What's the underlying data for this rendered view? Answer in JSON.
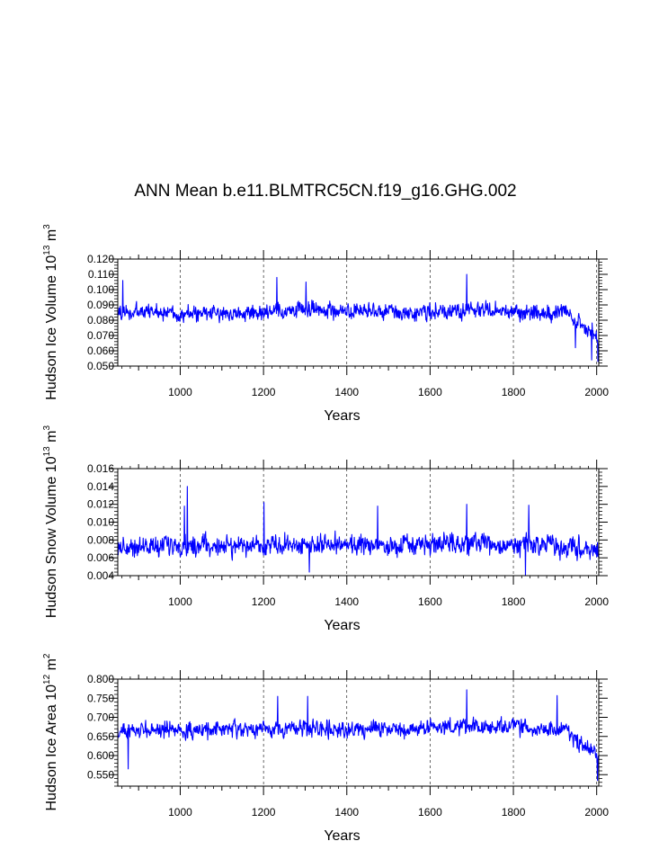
{
  "figure": {
    "title": "ANN Mean b.e11.BLMTRC5CN.f19_g16.GHG.002"
  },
  "chart_data": [
    {
      "type": "line",
      "title": "",
      "xlabel": "Years",
      "ylabel": "Hudson Ice Volume 10",
      "ylabel_exp": "13",
      "ylabel_unit": " m",
      "ylabel_unit_exp": "3",
      "xlim": [
        850,
        2005
      ],
      "ylim": [
        0.05,
        0.12
      ],
      "xticks": [
        1000,
        1200,
        1400,
        1600,
        1800,
        2000
      ],
      "xtick_labels": [
        "1000",
        "1200",
        "1400",
        "1600",
        "1800",
        "2000"
      ],
      "yticks": [
        0.05,
        0.06,
        0.07,
        0.08,
        0.09,
        0.1,
        0.11,
        0.12
      ],
      "ytick_labels": [
        "0.050",
        "0.060",
        "0.070",
        "0.080",
        "0.090",
        "0.100",
        "0.110",
        "0.120"
      ],
      "color": "#0000ff",
      "series": [
        {
          "name": "Hudson Ice Volume",
          "x_start": 850,
          "x_end": 2005,
          "anchors_x": [
            850,
            900,
            950,
            1000,
            1050,
            1100,
            1150,
            1200,
            1250,
            1300,
            1350,
            1400,
            1450,
            1500,
            1550,
            1600,
            1650,
            1700,
            1750,
            1800,
            1850,
            1900,
            1930,
            1950,
            1970,
            1990,
            2005
          ],
          "anchors_y": [
            0.085,
            0.085,
            0.086,
            0.084,
            0.084,
            0.085,
            0.084,
            0.085,
            0.085,
            0.088,
            0.087,
            0.085,
            0.085,
            0.086,
            0.085,
            0.086,
            0.085,
            0.087,
            0.086,
            0.086,
            0.085,
            0.085,
            0.084,
            0.079,
            0.075,
            0.073,
            0.066
          ],
          "noise_amp": 0.0075,
          "peaks": [
            [
              862,
              0.106
            ],
            [
              1232,
              0.108
            ],
            [
              1302,
              0.105
            ],
            [
              1688,
              0.11
            ],
            [
              1949,
              0.062
            ],
            [
              1988,
              0.054
            ],
            [
              2003,
              0.053
            ]
          ]
        }
      ]
    },
    {
      "type": "line",
      "title": "",
      "xlabel": "Years",
      "ylabel": "Hudson Snow Volume 10",
      "ylabel_exp": "13",
      "ylabel_unit": " m",
      "ylabel_unit_exp": "3",
      "xlim": [
        850,
        2005
      ],
      "ylim": [
        0.004,
        0.016
      ],
      "xticks": [
        1000,
        1200,
        1400,
        1600,
        1800,
        2000
      ],
      "xtick_labels": [
        "1000",
        "1200",
        "1400",
        "1600",
        "1800",
        "2000"
      ],
      "yticks": [
        0.004,
        0.006,
        0.008,
        0.01,
        0.012,
        0.014,
        0.016
      ],
      "ytick_labels": [
        "0.004",
        "0.006",
        "0.008",
        "0.010",
        "0.012",
        "0.014",
        "0.016"
      ],
      "color": "#0000ff",
      "series": [
        {
          "name": "Hudson Snow Volume",
          "x_start": 850,
          "x_end": 2005,
          "anchors_x": [
            850,
            950,
            1050,
            1150,
            1250,
            1350,
            1450,
            1550,
            1650,
            1750,
            1850,
            1950,
            2005
          ],
          "anchors_y": [
            0.0072,
            0.0073,
            0.0074,
            0.0073,
            0.0075,
            0.0074,
            0.0074,
            0.0073,
            0.0076,
            0.0074,
            0.0075,
            0.0071,
            0.0066
          ],
          "noise_amp": 0.0016,
          "peaks": [
            [
              1017,
              0.014
            ],
            [
              1201,
              0.0122
            ],
            [
              1474,
              0.0118
            ],
            [
              1688,
              0.012
            ],
            [
              1837,
              0.0119
            ],
            [
              1010,
              0.0118
            ],
            [
              1829,
              0.004
            ],
            [
              1310,
              0.0044
            ]
          ]
        }
      ]
    },
    {
      "type": "line",
      "title": "",
      "xlabel": "Years",
      "ylabel": "Hudson Ice Area 10",
      "ylabel_exp": "12",
      "ylabel_unit": " m",
      "ylabel_unit_exp": "2",
      "xlim": [
        850,
        2005
      ],
      "ylim": [
        0.52,
        0.8
      ],
      "xticks": [
        1000,
        1200,
        1400,
        1600,
        1800,
        2000
      ],
      "xtick_labels": [
        "1000",
        "1200",
        "1400",
        "1600",
        "1800",
        "2000"
      ],
      "yticks": [
        0.55,
        0.6,
        0.65,
        0.7,
        0.75,
        0.8
      ],
      "ytick_labels": [
        "0.550",
        "0.600",
        "0.650",
        "0.700",
        "0.750",
        "0.800"
      ],
      "color": "#0000ff",
      "series": [
        {
          "name": "Hudson Ice Area",
          "x_start": 850,
          "x_end": 2005,
          "anchors_x": [
            850,
            900,
            950,
            1000,
            1050,
            1100,
            1150,
            1200,
            1250,
            1300,
            1350,
            1400,
            1450,
            1500,
            1550,
            1600,
            1650,
            1700,
            1750,
            1800,
            1850,
            1900,
            1930,
            1950,
            1970,
            1990,
            2005
          ],
          "anchors_y": [
            0.66,
            0.665,
            0.67,
            0.665,
            0.665,
            0.67,
            0.665,
            0.67,
            0.67,
            0.675,
            0.672,
            0.668,
            0.67,
            0.672,
            0.665,
            0.678,
            0.672,
            0.675,
            0.672,
            0.675,
            0.67,
            0.672,
            0.665,
            0.64,
            0.625,
            0.615,
            0.59
          ],
          "noise_amp": 0.03,
          "peaks": [
            [
              1234,
              0.755
            ],
            [
              1306,
              0.755
            ],
            [
              1688,
              0.772
            ],
            [
              1905,
              0.757
            ],
            [
              875,
              0.565
            ],
            [
              2002,
              0.535
            ]
          ]
        }
      ]
    }
  ]
}
